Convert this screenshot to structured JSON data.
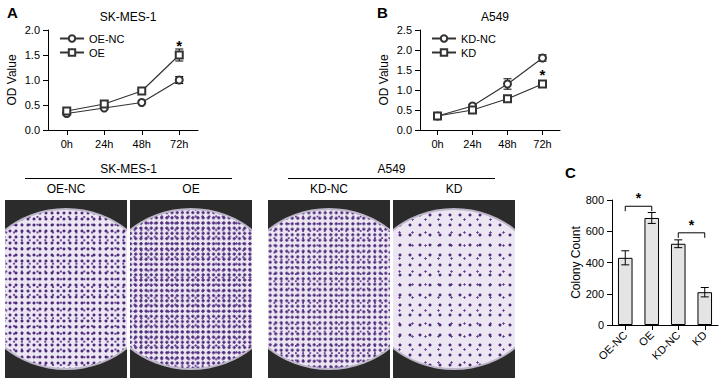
{
  "chart_data": [
    {
      "panel_label": "A",
      "type": "line",
      "title": "SK-MES-1",
      "y_label": "OD Value",
      "categories": [
        "0h",
        "24h",
        "48h",
        "72h"
      ],
      "series": [
        {
          "name": "OE-NC",
          "color": "#333333",
          "marker": "circle",
          "values": [
            0.33,
            0.44,
            0.55,
            1.0
          ],
          "errors": [
            0.02,
            0.02,
            0.02,
            0.07
          ]
        },
        {
          "name": "OE",
          "color": "#333333",
          "marker": "square",
          "values": [
            0.38,
            0.52,
            0.78,
            1.5
          ],
          "errors": [
            0.02,
            0.03,
            0.03,
            0.12
          ]
        }
      ],
      "ylim": [
        0,
        2
      ],
      "yticks": [
        {
          "value": 0,
          "label": "0.0"
        },
        {
          "value": 0.5,
          "label": "0.5"
        },
        {
          "value": 1,
          "label": "1.0"
        },
        {
          "value": 1.5,
          "label": "1.5"
        },
        {
          "value": 2,
          "label": "2.0"
        }
      ],
      "legend": "upper left",
      "grid": false,
      "annotations": [
        {
          "text": "*",
          "x": "72h",
          "y": 1.7
        }
      ]
    },
    {
      "panel_label": "B",
      "type": "line",
      "title": "A549",
      "y_label": "OD Value",
      "categories": [
        "0h",
        "24h",
        "48h",
        "72h"
      ],
      "series": [
        {
          "name": "KD-NC",
          "color": "#333333",
          "marker": "circle",
          "values": [
            0.35,
            0.6,
            1.15,
            1.8
          ],
          "errors": [
            0.02,
            0.04,
            0.13,
            0.08
          ]
        },
        {
          "name": "KD",
          "color": "#333333",
          "marker": "square",
          "values": [
            0.35,
            0.5,
            0.78,
            1.15
          ],
          "errors": [
            0.02,
            0.06,
            0.07,
            0.08
          ]
        }
      ],
      "ylim": [
        0,
        2.5
      ],
      "yticks": [
        {
          "value": 0,
          "label": "0.0"
        },
        {
          "value": 0.5,
          "label": "0.5"
        },
        {
          "value": 1,
          "label": "1.0"
        },
        {
          "value": 1.5,
          "label": "1.5"
        },
        {
          "value": 2,
          "label": "2.0"
        },
        {
          "value": 2.5,
          "label": "2.5"
        }
      ],
      "legend": "upper left",
      "grid": false,
      "annotations": [
        {
          "text": "*",
          "x": "72h",
          "y": 1.38
        }
      ]
    },
    {
      "panel_label": "C",
      "type": "bar",
      "y_label": "Colony Count",
      "categories": [
        "OE-NC",
        "OE",
        "KD-NC",
        "KD"
      ],
      "values": [
        430,
        685,
        520,
        210
      ],
      "errors": [
        45,
        35,
        25,
        30
      ],
      "color": "#e4e4e4",
      "ylim": [
        0,
        800
      ],
      "yticks": [
        0,
        200,
        400,
        600,
        800
      ],
      "grid": false,
      "annotations": [
        {
          "text": "*",
          "from": "OE-NC",
          "to": "OE",
          "y": 760
        },
        {
          "text": "*",
          "from": "KD-NC",
          "to": "KD",
          "y": 590
        }
      ]
    }
  ],
  "colony_images": [
    {
      "cell_line": "SK-MES-1",
      "plates": [
        "OE-NC",
        "OE"
      ]
    },
    {
      "cell_line": "A549",
      "plates": [
        "KD-NC",
        "KD"
      ]
    }
  ]
}
